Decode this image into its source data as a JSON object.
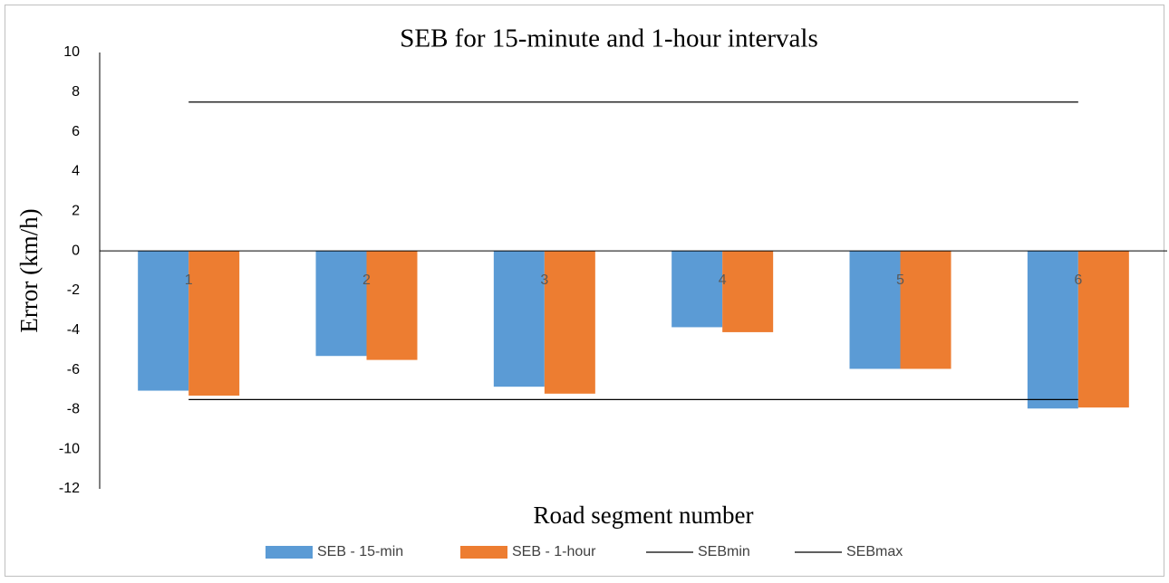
{
  "chart_data": {
    "type": "bar",
    "title": "SEB for 15-minute and 1-hour intervals",
    "x_label": "Road segment number",
    "y_label": "Error (km/h)",
    "categories": [
      "1",
      "2",
      "3",
      "4",
      "5",
      "6"
    ],
    "series": [
      {
        "name": "SEB - 15-min",
        "type": "bar",
        "color": "#5b9bd5",
        "values": [
          -7.05,
          -5.3,
          -6.85,
          -3.85,
          -5.95,
          -7.95
        ]
      },
      {
        "name": "SEB - 1-hour",
        "type": "bar",
        "color": "#ed7d31",
        "values": [
          -7.3,
          -5.5,
          -7.2,
          -4.1,
          -5.95,
          -7.9
        ]
      },
      {
        "name": "SEBmin",
        "type": "line",
        "color": "#000000",
        "values": [
          -7.5,
          -7.5,
          -7.5,
          -7.5,
          -7.5,
          -7.5
        ]
      },
      {
        "name": "SEBmax",
        "type": "line",
        "color": "#000000",
        "values": [
          7.5,
          7.5,
          7.5,
          7.5,
          7.5,
          7.5
        ]
      }
    ],
    "ylim": [
      -12,
      10
    ],
    "yticks": [
      -12,
      -10,
      -8,
      -6,
      -4,
      -2,
      0,
      2,
      4,
      6,
      8,
      10
    ],
    "grid": false,
    "legend": "bottom"
  }
}
